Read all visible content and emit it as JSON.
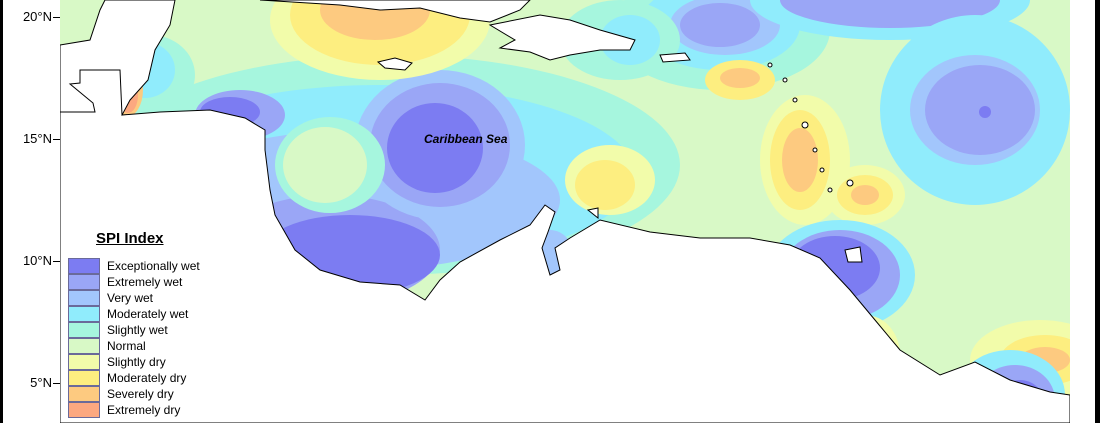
{
  "map": {
    "sea_label": "Caribbean Sea",
    "latitude_labels": [
      {
        "label": "20°N",
        "value": 20
      },
      {
        "label": "15°N",
        "value": 15
      },
      {
        "label": "10°N",
        "value": 10
      },
      {
        "label": "5°N",
        "value": 5
      }
    ]
  },
  "legend": {
    "title": "SPI Index",
    "items": [
      {
        "label": "Exceptionally wet",
        "color": "#7c7cf2"
      },
      {
        "label": "Extremely wet",
        "color": "#9aa6f6"
      },
      {
        "label": "Very wet",
        "color": "#a2c6fc"
      },
      {
        "label": "Moderately wet",
        "color": "#90ecfc"
      },
      {
        "label": "Slightly wet",
        "color": "#a6f6de"
      },
      {
        "label": "Normal",
        "color": "#d8f9c6"
      },
      {
        "label": "Slightly dry",
        "color": "#f2fcaa"
      },
      {
        "label": "Moderately dry",
        "color": "#fdee80"
      },
      {
        "label": "Severely dry",
        "color": "#fdca80"
      },
      {
        "label": "Extremely dry",
        "color": "#fca880"
      }
    ]
  }
}
